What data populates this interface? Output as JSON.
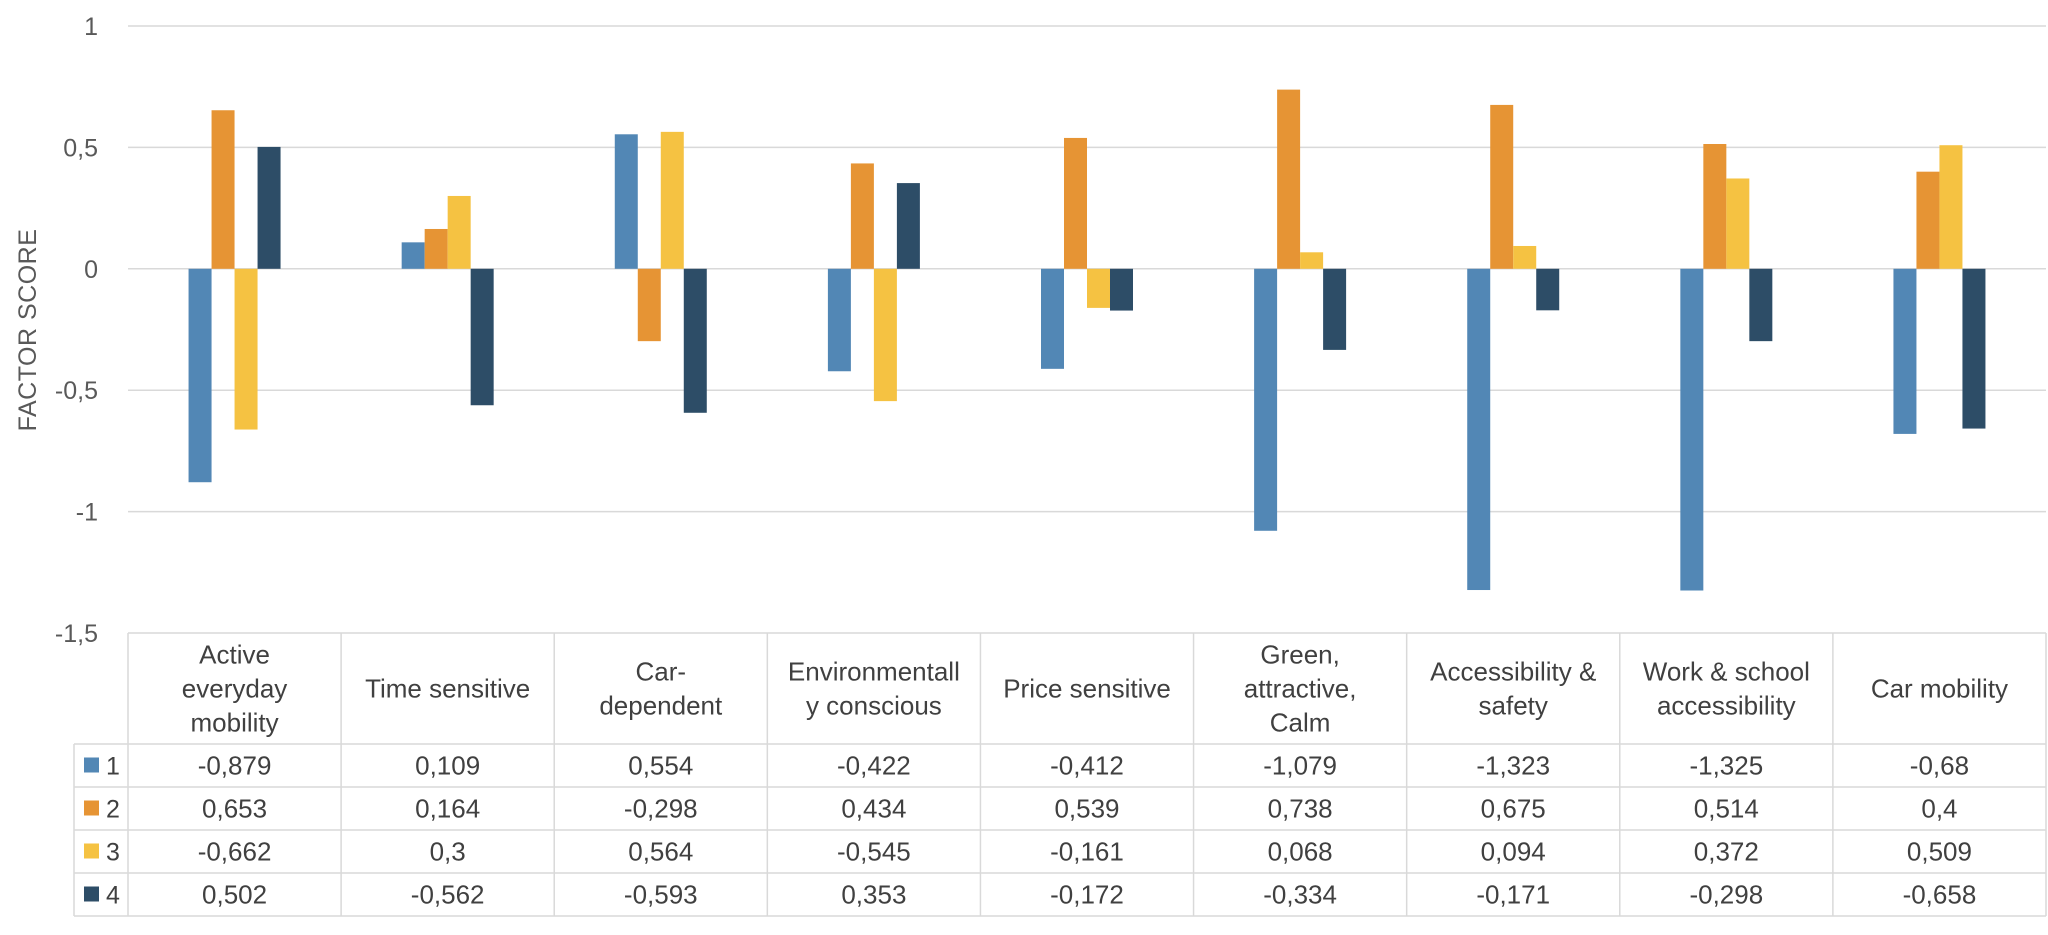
{
  "chart_data": {
    "type": "bar",
    "title": "",
    "xlabel": "",
    "ylabel": "FACTOR SCORE",
    "ylim": [
      -1.5,
      1
    ],
    "yticks": [
      1,
      0.5,
      0,
      -0.5,
      -1,
      -1.5
    ],
    "ytick_labels": [
      "1",
      "0,5",
      "0",
      "-0,5",
      "-1",
      "-1,5"
    ],
    "grid": true,
    "legend": "data-table-left",
    "categories": [
      [
        "Active",
        "everyday",
        "mobility"
      ],
      [
        "Time sensitive"
      ],
      [
        "Car-",
        "dependent"
      ],
      [
        "Environmentall",
        "y conscious"
      ],
      [
        "Price sensitive"
      ],
      [
        "Green,",
        "attractive,",
        "Calm"
      ],
      [
        "Accessibility &",
        "safety"
      ],
      [
        "Work & school",
        "accessibility"
      ],
      [
        "Car mobility"
      ]
    ],
    "series": [
      {
        "name": "1",
        "color": "#5287b5",
        "values": [
          -0.879,
          0.109,
          0.554,
          -0.422,
          -0.412,
          -1.079,
          -1.323,
          -1.325,
          -0.68
        ],
        "labels": [
          "-0,879",
          "0,109",
          "0,554",
          "-0,422",
          "-0,412",
          "-1,079",
          "-1,323",
          "-1,325",
          "-0,68"
        ]
      },
      {
        "name": "2",
        "color": "#e69434",
        "values": [
          0.653,
          0.164,
          -0.298,
          0.434,
          0.539,
          0.738,
          0.675,
          0.514,
          0.4
        ],
        "labels": [
          "0,653",
          "0,164",
          "-0,298",
          "0,434",
          "0,539",
          "0,738",
          "0,675",
          "0,514",
          "0,4"
        ]
      },
      {
        "name": "3",
        "color": "#f5c242",
        "values": [
          -0.662,
          0.3,
          0.564,
          -0.545,
          -0.161,
          0.068,
          0.094,
          0.372,
          0.509
        ],
        "labels": [
          "-0,662",
          "0,3",
          "0,564",
          "-0,545",
          "-0,161",
          "0,068",
          "0,094",
          "0,372",
          "0,509"
        ]
      },
      {
        "name": "4",
        "color": "#2d4d67",
        "values": [
          0.502,
          -0.562,
          -0.593,
          0.353,
          -0.172,
          -0.334,
          -0.171,
          -0.298,
          -0.658
        ],
        "labels": [
          "0,502",
          "-0,562",
          "-0,593",
          "0,353",
          "-0,172",
          "-0,334",
          "-0,171",
          "-0,298",
          "-0,658"
        ]
      }
    ],
    "colors": {
      "grid": "#d9d9d9",
      "text": "#595959"
    }
  }
}
